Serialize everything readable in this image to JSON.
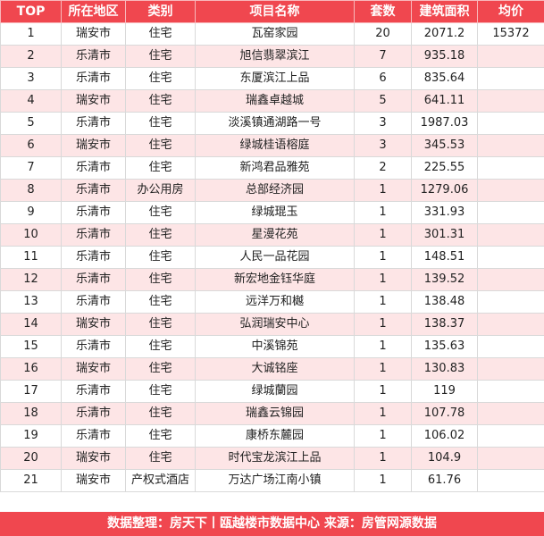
{
  "table": {
    "headers": [
      "TOP",
      "所在地区",
      "类别",
      "项目名称",
      "套数",
      "建筑面积",
      "均价"
    ],
    "rows": [
      [
        "1",
        "瑞安市",
        "住宅",
        "瓦窑家园",
        "20",
        "2071.2",
        "15372"
      ],
      [
        "2",
        "乐清市",
        "住宅",
        "旭信翡翠滨江",
        "7",
        "935.18",
        ""
      ],
      [
        "3",
        "乐清市",
        "住宅",
        "东厦滨江上品",
        "6",
        "835.64",
        ""
      ],
      [
        "4",
        "瑞安市",
        "住宅",
        "瑞鑫卓越城",
        "5",
        "641.11",
        ""
      ],
      [
        "5",
        "乐清市",
        "住宅",
        "淡溪镇通湖路一号",
        "3",
        "1987.03",
        ""
      ],
      [
        "6",
        "瑞安市",
        "住宅",
        "绿城桂语榕庭",
        "3",
        "345.53",
        ""
      ],
      [
        "7",
        "乐清市",
        "住宅",
        "新鸿君品雅苑",
        "2",
        "225.55",
        ""
      ],
      [
        "8",
        "乐清市",
        "办公用房",
        "总部经济园",
        "1",
        "1279.06",
        ""
      ],
      [
        "9",
        "乐清市",
        "住宅",
        "绿城琨玉",
        "1",
        "331.93",
        ""
      ],
      [
        "10",
        "乐清市",
        "住宅",
        "星漫花苑",
        "1",
        "301.31",
        ""
      ],
      [
        "11",
        "乐清市",
        "住宅",
        "人民一品花园",
        "1",
        "148.51",
        ""
      ],
      [
        "12",
        "乐清市",
        "住宅",
        "新宏地金钰华庭",
        "1",
        "139.52",
        ""
      ],
      [
        "13",
        "乐清市",
        "住宅",
        "远洋万和樾",
        "1",
        "138.48",
        ""
      ],
      [
        "14",
        "瑞安市",
        "住宅",
        "弘润瑞安中心",
        "1",
        "138.37",
        ""
      ],
      [
        "15",
        "乐清市",
        "住宅",
        "中溪锦苑",
        "1",
        "135.63",
        ""
      ],
      [
        "16",
        "瑞安市",
        "住宅",
        "大诚铭座",
        "1",
        "130.83",
        ""
      ],
      [
        "17",
        "乐清市",
        "住宅",
        "绿城蘭园",
        "1",
        "119",
        ""
      ],
      [
        "18",
        "乐清市",
        "住宅",
        "瑞鑫云锦园",
        "1",
        "107.78",
        ""
      ],
      [
        "19",
        "乐清市",
        "住宅",
        "康桥东麓园",
        "1",
        "106.02",
        ""
      ],
      [
        "20",
        "瑞安市",
        "住宅",
        "时代宝龙滨江上品",
        "1",
        "104.9",
        ""
      ],
      [
        "21",
        "瑞安市",
        "产权式酒店",
        "万达广场江南小镇",
        "1",
        "61.76",
        ""
      ]
    ]
  },
  "footer": {
    "text": "数据整理：房天下丨瓯越楼市数据中心   来源：房管网源数据"
  },
  "colors": {
    "header_bg": "#f0474f",
    "stripe_bg": "#fde5e6",
    "footer_bg": "#f0474f"
  }
}
